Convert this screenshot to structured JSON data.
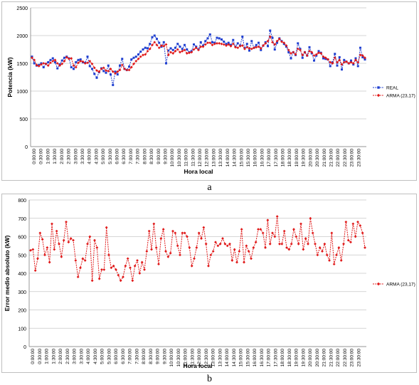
{
  "captions": {
    "a": "a",
    "b": "b"
  },
  "chart_data": [
    {
      "id": "a",
      "type": "line",
      "title": "",
      "xlabel": "Hora local",
      "ylabel": "Potencia (kW)",
      "ylim": [
        0,
        2500
      ],
      "yticks": [
        0,
        500,
        1000,
        1500,
        2000,
        2500
      ],
      "grid": true,
      "legend_position": "right",
      "x_tick_labels": [
        "0:00:00",
        "0:30:00",
        "1:00:00",
        "1:30:00",
        "2:00:00",
        "2:30:00",
        "3:00:00",
        "3:30:00",
        "4:00:00",
        "4:30:00",
        "5:00:00",
        "5:30:00",
        "6:00:00",
        "6:30:00",
        "7:00:00",
        "7:30:00",
        "8:00:00",
        "8:30:00",
        "9:00:00",
        "9:30:00",
        "10:00:00",
        "10:30:00",
        "11:00:00",
        "11:30:00",
        "12:00:00",
        "12:30:00",
        "13:00:00",
        "13:30:00",
        "14:00:00",
        "14:30:00",
        "15:00:00",
        "15:30:00",
        "16:00:00",
        "16:30:00",
        "17:00:00",
        "17:30:00",
        "18:00:00",
        "18:30:00",
        "19:00:00",
        "19:30:00",
        "20:00:00",
        "20:30:00",
        "21:00:00",
        "21:30:00",
        "22:00:00",
        "22:30:00",
        "23:00:00",
        "23:30:00"
      ],
      "series": [
        {
          "name": "REAL",
          "color": "#1f3fd0",
          "marker": "square",
          "values": [
            1620,
            1500,
            1460,
            1470,
            1500,
            1430,
            1490,
            1520,
            1560,
            1590,
            1520,
            1410,
            1480,
            1550,
            1600,
            1620,
            1590,
            1430,
            1400,
            1520,
            1560,
            1570,
            1520,
            1510,
            1620,
            1450,
            1400,
            1310,
            1240,
            1340,
            1410,
            1360,
            1330,
            1460,
            1300,
            1110,
            1350,
            1300,
            1460,
            1580,
            1400,
            1380,
            1440,
            1570,
            1600,
            1620,
            1660,
            1710,
            1750,
            1780,
            1770,
            1850,
            1970,
            2000,
            1940,
            1870,
            1800,
            1880,
            1500,
            1730,
            1770,
            1740,
            1780,
            1850,
            1800,
            1760,
            1830,
            1750,
            1700,
            1720,
            1840,
            1800,
            1750,
            1880,
            1820,
            1900,
            1950,
            2020,
            1880,
            1870,
            1960,
            1950,
            1930,
            1890,
            1850,
            1870,
            1830,
            1920,
            1800,
            1860,
            1820,
            1980,
            1770,
            1850,
            1730,
            1900,
            1780,
            1830,
            1870,
            1740,
            1820,
            1880,
            1810,
            2090,
            1960,
            1750,
            1870,
            1950,
            1900,
            1850,
            1800,
            1700,
            1590,
            1700,
            1650,
            1860,
            1760,
            1600,
            1700,
            1640,
            1790,
            1680,
            1550,
            1640,
            1720,
            1690,
            1590,
            1580,
            1570,
            1450,
            1520,
            1670,
            1460,
            1610,
            1390,
            1560,
            1530,
            1500,
            1550,
            1480,
            1590,
            1450,
            1780,
            1610,
            1570
          ]
        },
        {
          "name": "ARMA (23,17)",
          "color": "#e01818",
          "marker": "diamond",
          "values": [
            1600,
            1560,
            1470,
            1450,
            1480,
            1500,
            1490,
            1460,
            1510,
            1540,
            1560,
            1500,
            1460,
            1490,
            1540,
            1610,
            1580,
            1590,
            1460,
            1430,
            1510,
            1540,
            1530,
            1500,
            1510,
            1540,
            1490,
            1420,
            1370,
            1350,
            1400,
            1420,
            1370,
            1360,
            1400,
            1350,
            1320,
            1350,
            1380,
            1470,
            1400,
            1380,
            1380,
            1430,
            1490,
            1540,
            1580,
            1620,
            1650,
            1660,
            1720,
            1760,
            1830,
            1880,
            1830,
            1780,
            1820,
            1810,
            1840,
            1650,
            1700,
            1680,
            1720,
            1750,
            1700,
            1720,
            1740,
            1680,
            1690,
            1700,
            1750,
            1780,
            1740,
            1800,
            1800,
            1840,
            1870,
            1870,
            1830,
            1850,
            1860,
            1860,
            1850,
            1840,
            1820,
            1840,
            1810,
            1850,
            1790,
            1780,
            1810,
            1820,
            1760,
            1790,
            1770,
            1760,
            1780,
            1790,
            1800,
            1770,
            1820,
            1860,
            1900,
            1980,
            1880,
            1840,
            1900,
            1940,
            1890,
            1870,
            1820,
            1740,
            1680,
            1700,
            1660,
            1760,
            1740,
            1650,
            1700,
            1640,
            1720,
            1700,
            1640,
            1660,
            1690,
            1680,
            1620,
            1600,
            1570,
            1520,
            1500,
            1600,
            1520,
            1560,
            1480,
            1520,
            1530,
            1500,
            1520,
            1500,
            1560,
            1520,
            1650,
            1640,
            1600
          ]
        }
      ]
    },
    {
      "id": "b",
      "type": "line",
      "title": "",
      "xlabel": "Hora local",
      "ylabel": "Error medio absoluto (kW)",
      "ylim": [
        0,
        800
      ],
      "yticks": [
        0,
        100,
        200,
        300,
        400,
        500,
        600,
        700,
        800
      ],
      "grid": true,
      "legend_position": "right",
      "x_tick_labels": [
        "0:00:00",
        "0:30:00",
        "1:00:00",
        "1:30:00",
        "2:00:00",
        "2:30:00",
        "3:00:00",
        "3:30:00",
        "4:00:00",
        "4:30:00",
        "5:00:00",
        "5:30:00",
        "6:00:00",
        "6:30:00",
        "7:00:00",
        "7:30:00",
        "8:00:00",
        "8:30:00",
        "9:00:00",
        "9:30:00",
        "10:00:00",
        "10:30:00",
        "11:00:00",
        "11:30:00",
        "12:00:00",
        "12:30:00",
        "13:00:00",
        "13:30:00",
        "14:00:00",
        "14:30:00",
        "15:00:00",
        "15:30:00",
        "16:00:00",
        "16:30:00",
        "17:00:00",
        "17:30:00",
        "18:00:00",
        "18:30:00",
        "19:00:00",
        "19:30:00",
        "20:00:00",
        "20:30:00",
        "21:00:00",
        "21:30:00",
        "22:00:00",
        "22:30:00",
        "23:00:00",
        "23:30:00"
      ],
      "series": [
        {
          "name": "ARMA (23,17)",
          "color": "#e01818",
          "marker": "diamond",
          "values": [
            525,
            530,
            415,
            480,
            620,
            585,
            500,
            540,
            460,
            670,
            530,
            630,
            560,
            490,
            580,
            680,
            570,
            590,
            580,
            470,
            380,
            430,
            480,
            470,
            560,
            600,
            360,
            580,
            540,
            370,
            420,
            420,
            650,
            500,
            430,
            440,
            420,
            390,
            360,
            380,
            440,
            480,
            430,
            360,
            440,
            470,
            400,
            460,
            420,
            520,
            630,
            530,
            670,
            540,
            450,
            590,
            640,
            520,
            490,
            510,
            630,
            620,
            550,
            500,
            620,
            620,
            600,
            540,
            440,
            480,
            540,
            620,
            590,
            650,
            560,
            440,
            500,
            520,
            570,
            550,
            560,
            590,
            560,
            550,
            560,
            470,
            530,
            460,
            520,
            640,
            460,
            550,
            520,
            480,
            540,
            570,
            640,
            640,
            620,
            540,
            690,
            560,
            620,
            600,
            710,
            560,
            560,
            630,
            540,
            530,
            560,
            640,
            600,
            560,
            670,
            530,
            590,
            560,
            700,
            620,
            560,
            500,
            540,
            520,
            560,
            500,
            470,
            620,
            450,
            500,
            540,
            470,
            560,
            680,
            580,
            570,
            670,
            600,
            680,
            660,
            620,
            540
          ]
        }
      ]
    }
  ]
}
